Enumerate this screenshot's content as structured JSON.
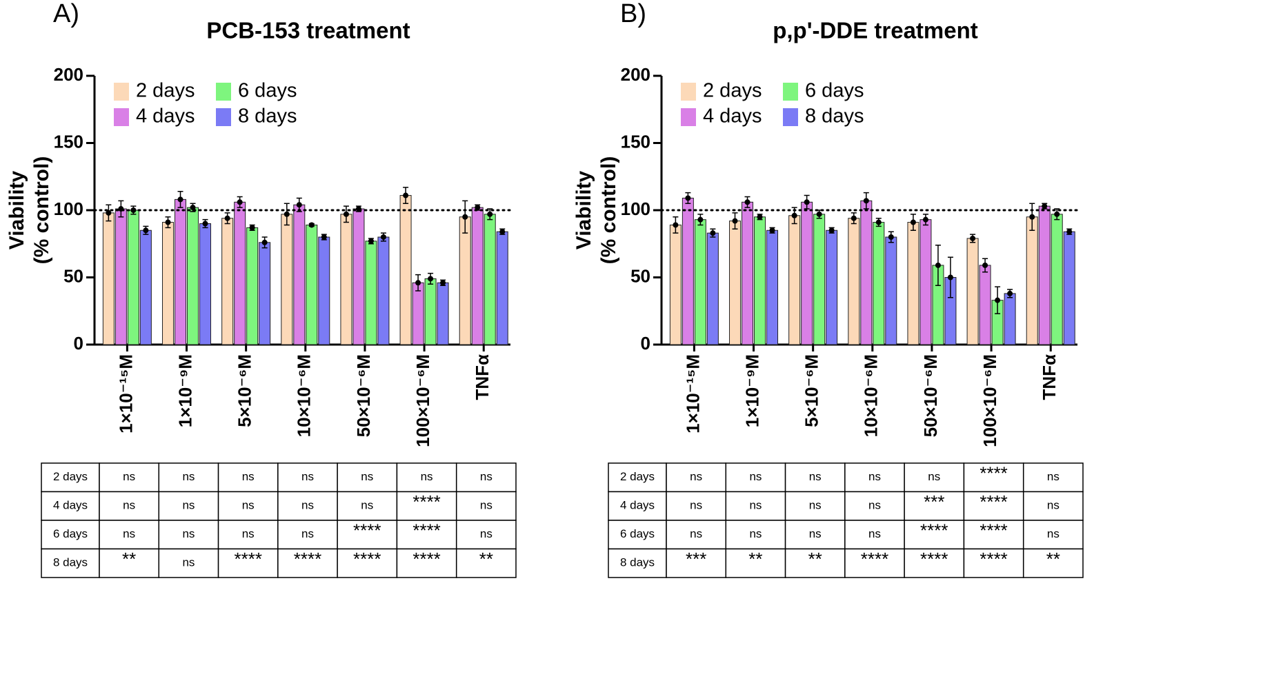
{
  "chart_data": [
    {
      "type": "bar",
      "panel_label": "A)",
      "title": "PCB-153 treatment",
      "ylabel": [
        "Viability",
        "(% control)"
      ],
      "categories": [
        "1×10⁻¹⁵M",
        "1×10⁻⁹M",
        "5×10⁻⁶M",
        "10×10⁻⁶M",
        "50×10⁻⁶M",
        "100×10⁻⁶M",
        "TNFα"
      ],
      "series": [
        {
          "name": "2 days",
          "color": "#fcd9b8",
          "values": [
            98,
            91,
            94,
            97,
            97,
            111,
            95
          ],
          "errors": [
            6,
            4,
            4,
            8,
            6,
            6,
            12
          ]
        },
        {
          "name": "4 days",
          "color": "#d980e6",
          "values": [
            101,
            108,
            106,
            104,
            101,
            46,
            102
          ],
          "errors": [
            6,
            6,
            4,
            5,
            2,
            6,
            2
          ]
        },
        {
          "name": "6 days",
          "color": "#7ef57e",
          "values": [
            100,
            102,
            87,
            89,
            77,
            49,
            97
          ],
          "errors": [
            3,
            3,
            2,
            1,
            2,
            4,
            4
          ]
        },
        {
          "name": "8 days",
          "color": "#7b7bf5",
          "values": [
            85,
            90,
            76,
            80,
            80,
            46,
            84
          ],
          "errors": [
            3,
            3,
            4,
            2,
            3,
            2,
            2
          ]
        }
      ],
      "ylim": [
        0,
        200
      ],
      "yticks": [
        0,
        50,
        100,
        150,
        200
      ],
      "reference_line": 100,
      "legend": "upper left",
      "stats_table": [
        [
          "2 days",
          "ns",
          "ns",
          "ns",
          "ns",
          "ns",
          "ns",
          "ns"
        ],
        [
          "4 days",
          "ns",
          "ns",
          "ns",
          "ns",
          "ns",
          "****",
          "ns"
        ],
        [
          "6 days",
          "ns",
          "ns",
          "ns",
          "ns",
          "****",
          "****",
          "ns"
        ],
        [
          "8 days",
          "**",
          "ns",
          "****",
          "****",
          "****",
          "****",
          "**"
        ]
      ]
    },
    {
      "type": "bar",
      "panel_label": "B)",
      "title": "p,p'-DDE treatment",
      "ylabel": [
        "Viability",
        "(% control)"
      ],
      "categories": [
        "1×10⁻¹⁵M",
        "1×10⁻⁹M",
        "5×10⁻⁶M",
        "10×10⁻⁶M",
        "50×10⁻⁶M",
        "100×10⁻⁶M",
        "TNFα"
      ],
      "series": [
        {
          "name": "2 days",
          "color": "#fcd9b8",
          "values": [
            89,
            92,
            96,
            94,
            91,
            79,
            95
          ],
          "errors": [
            6,
            6,
            6,
            4,
            6,
            3,
            10
          ]
        },
        {
          "name": "4 days",
          "color": "#d980e6",
          "values": [
            109,
            106,
            106,
            107,
            93,
            59,
            103
          ],
          "errors": [
            4,
            4,
            5,
            6,
            4,
            5,
            2
          ]
        },
        {
          "name": "6 days",
          "color": "#7ef57e",
          "values": [
            93,
            95,
            97,
            91,
            59,
            33,
            97
          ],
          "errors": [
            4,
            2,
            3,
            3,
            15,
            10,
            4
          ]
        },
        {
          "name": "8 days",
          "color": "#7b7bf5",
          "values": [
            83,
            85,
            85,
            80,
            50,
            38,
            84
          ],
          "errors": [
            3,
            2,
            2,
            4,
            15,
            3,
            2
          ]
        }
      ],
      "ylim": [
        0,
        200
      ],
      "yticks": [
        0,
        50,
        100,
        150,
        200
      ],
      "reference_line": 100,
      "legend": "upper left",
      "stats_table": [
        [
          "2 days",
          "ns",
          "ns",
          "ns",
          "ns",
          "ns",
          "****",
          "ns"
        ],
        [
          "4 days",
          "ns",
          "ns",
          "ns",
          "ns",
          "***",
          "****",
          "ns"
        ],
        [
          "6 days",
          "ns",
          "ns",
          "ns",
          "ns",
          "****",
          "****",
          "ns"
        ],
        [
          "8 days",
          "***",
          "**",
          "**",
          "****",
          "****",
          "****",
          "**"
        ]
      ]
    }
  ]
}
